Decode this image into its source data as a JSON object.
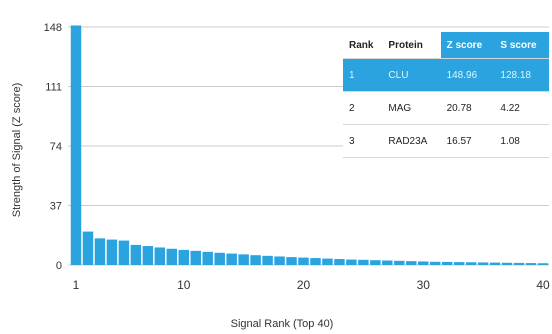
{
  "chart_data": {
    "type": "bar",
    "xlabel": "Signal Rank (Top 40)",
    "ylabel": "Strength of Signal (Z score)",
    "ylim": [
      0,
      148
    ],
    "y_ticks": [
      "148",
      "111",
      "74",
      "37",
      "0"
    ],
    "x_ticks": [
      "1",
      "10",
      "20",
      "30",
      "40"
    ],
    "x_range": [
      1,
      40
    ],
    "grid": true,
    "bar_color": "#2aa3df",
    "ranks": [
      1,
      2,
      3,
      4,
      5,
      6,
      7,
      8,
      9,
      10,
      11,
      12,
      13,
      14,
      15,
      16,
      17,
      18,
      19,
      20,
      21,
      22,
      23,
      24,
      25,
      26,
      27,
      28,
      29,
      30,
      31,
      32,
      33,
      34,
      35,
      36,
      37,
      38,
      39,
      40
    ],
    "values": [
      148.96,
      20.78,
      16.57,
      15.8,
      15.2,
      12.5,
      11.8,
      10.9,
      10.1,
      9.4,
      8.8,
      8.2,
      7.6,
      7.1,
      6.6,
      6.1,
      5.7,
      5.3,
      4.9,
      4.6,
      4.3,
      4.0,
      3.7,
      3.4,
      3.2,
      3.0,
      2.8,
      2.6,
      2.4,
      2.2,
      2.0,
      1.9,
      1.8,
      1.7,
      1.6,
      1.5,
      1.4,
      1.3,
      1.2,
      1.1
    ]
  },
  "table": {
    "headers": [
      "Rank",
      "Protein",
      "Z score",
      "S score"
    ],
    "highlight_color": "#2aa3df",
    "rows": [
      [
        "1",
        "CLU",
        "148.96",
        "128.18"
      ],
      [
        "2",
        "MAG",
        "20.78",
        "4.22"
      ],
      [
        "3",
        "RAD23A",
        "16.57",
        "1.08"
      ]
    ]
  }
}
